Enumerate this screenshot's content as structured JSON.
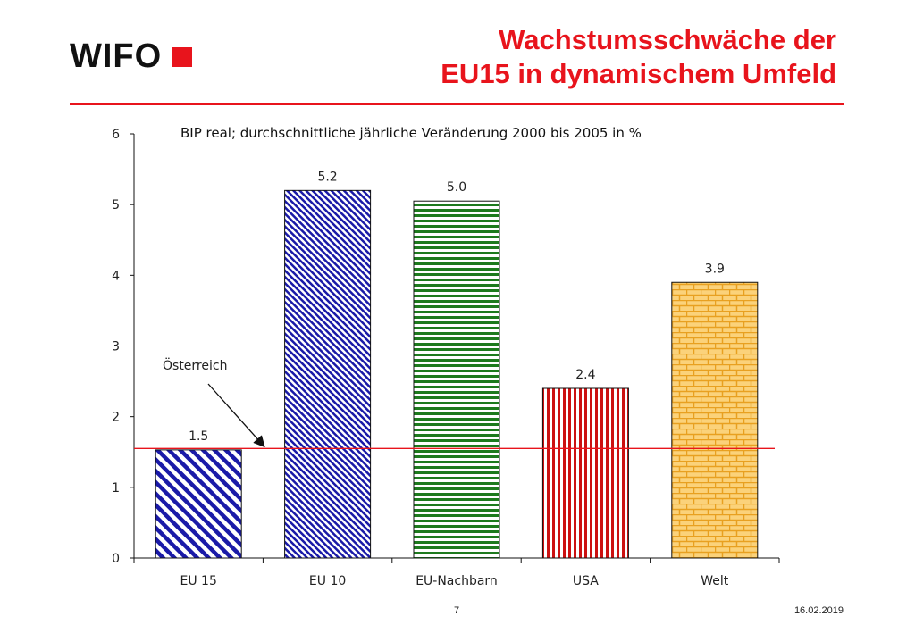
{
  "header": {
    "logo_text": "WIFO",
    "title_line1": "Wachstumsschwäche der",
    "title_line2": "EU15 in dynamischem Umfeld",
    "accent_color": "#e8141c"
  },
  "footer": {
    "page_number": "7",
    "date": "16.02.2019"
  },
  "chart_data": {
    "type": "bar",
    "title": "BIP real; durchschnittliche jährliche Veränderung 2000 bis 2005 in %",
    "xlabel": "",
    "ylabel": "",
    "ylim": [
      0,
      6
    ],
    "yticks": [
      0,
      1,
      2,
      3,
      4,
      5,
      6
    ],
    "categories": [
      "EU 15",
      "EU 10",
      "EU-Nachbarn",
      "USA",
      "Welt"
    ],
    "values": [
      1.53,
      5.2,
      5.05,
      2.4,
      3.9
    ],
    "value_labels": [
      "1.5",
      "5.2",
      "5.0",
      "2.4",
      "3.9"
    ],
    "bar_colors": [
      "#1a1aa8",
      "#1a1aa8",
      "#1e7a1e",
      "#cc1111",
      "#e8a020"
    ],
    "bar_patterns": [
      "diagonal-wide",
      "diagonal-fine",
      "horizontal",
      "vertical",
      "brick"
    ],
    "reference_line": {
      "label": "Österreich",
      "value": 1.55,
      "color": "#e8141c"
    },
    "grid": false,
    "legend": "none"
  }
}
